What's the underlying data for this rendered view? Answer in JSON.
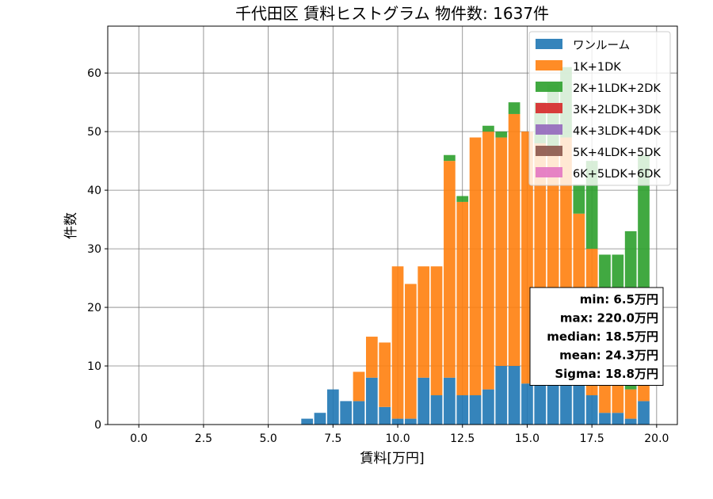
{
  "chart_data": {
    "type": "bar",
    "title": "千代田区 賃料ヒストグラム 物件数: 1637件",
    "xlabel": "賃料[万円]",
    "ylabel": "件数",
    "xlim": [
      -1.2,
      20.8
    ],
    "ylim": [
      0,
      68
    ],
    "xticks": [
      "0.0",
      "2.5",
      "5.0",
      "7.5",
      "10.0",
      "12.5",
      "15.0",
      "17.5",
      "20.0"
    ],
    "xtick_values": [
      0,
      2.5,
      5,
      7.5,
      10,
      12.5,
      15,
      17.5,
      20
    ],
    "yticks": [
      "0",
      "10",
      "20",
      "30",
      "40",
      "50",
      "60"
    ],
    "ytick_values": [
      0,
      10,
      20,
      30,
      40,
      50,
      60
    ],
    "bin_width": 0.5,
    "bin_centers": [
      6.5,
      7.0,
      7.5,
      8.0,
      8.5,
      9.0,
      9.5,
      10.0,
      10.5,
      11.0,
      11.5,
      12.0,
      12.5,
      13.0,
      13.5,
      14.0,
      14.5,
      15.0,
      15.5,
      16.0,
      16.5,
      17.0,
      17.5,
      18.0,
      18.5,
      19.0,
      19.5
    ],
    "series": [
      {
        "name": "ワンルーム",
        "color": "#1f77b4",
        "values": [
          1,
          2,
          6,
          4,
          4,
          8,
          3,
          1,
          1,
          8,
          5,
          8,
          5,
          5,
          6,
          10,
          10,
          7,
          8,
          8,
          8,
          8,
          5,
          2,
          2,
          1,
          4
        ]
      },
      {
        "name": "1K+1DK",
        "color": "#ff7f0e",
        "values": [
          0,
          0,
          0,
          0,
          5,
          7,
          11,
          26,
          23,
          19,
          22,
          37,
          33,
          44,
          44,
          39,
          43,
          43,
          40,
          38,
          41,
          28,
          25,
          13,
          7,
          5,
          5
        ]
      },
      {
        "name": "2K+1LDK+2DK",
        "color": "#2ca02c",
        "values": [
          0,
          0,
          0,
          0,
          0,
          0,
          0,
          0,
          0,
          0,
          0,
          1,
          1,
          0,
          1,
          1,
          2,
          0,
          7,
          12,
          12,
          5,
          15,
          14,
          20,
          27,
          37
        ]
      },
      {
        "name": "3K+2LDK+3DK",
        "color": "#d62728",
        "values": [
          0,
          0,
          0,
          0,
          0,
          0,
          0,
          0,
          0,
          0,
          0,
          0,
          0,
          0,
          0,
          0,
          0,
          0,
          0,
          0,
          0,
          0,
          0,
          0,
          0,
          0,
          0
        ]
      },
      {
        "name": "4K+3LDK+4DK",
        "color": "#9467bd",
        "values": [
          0,
          0,
          0,
          0,
          0,
          0,
          0,
          0,
          0,
          0,
          0,
          0,
          0,
          0,
          0,
          0,
          0,
          0,
          0,
          0,
          0,
          0,
          0,
          0,
          0,
          0,
          0
        ]
      },
      {
        "name": "5K+4LDK+5DK",
        "color": "#8c564b",
        "values": [
          0,
          0,
          0,
          0,
          0,
          0,
          0,
          0,
          0,
          0,
          0,
          0,
          0,
          0,
          0,
          0,
          0,
          0,
          0,
          0,
          0,
          0,
          0,
          0,
          0,
          0,
          0
        ]
      },
      {
        "name": "6K+5LDK+6DK",
        "color": "#e377c2",
        "values": [
          0,
          0,
          0,
          0,
          0,
          0,
          0,
          0,
          0,
          0,
          0,
          0,
          0,
          0,
          0,
          0,
          0,
          0,
          0,
          0,
          0,
          0,
          0,
          0,
          0,
          0,
          0
        ]
      }
    ],
    "grid": true,
    "legend_position": "top-right",
    "stats_position": "bottom-right",
    "stats": [
      "min: 6.5万円",
      "max: 220.0万円",
      "median: 18.5万円",
      "mean: 24.3万円",
      "Sigma: 18.8万円"
    ]
  }
}
